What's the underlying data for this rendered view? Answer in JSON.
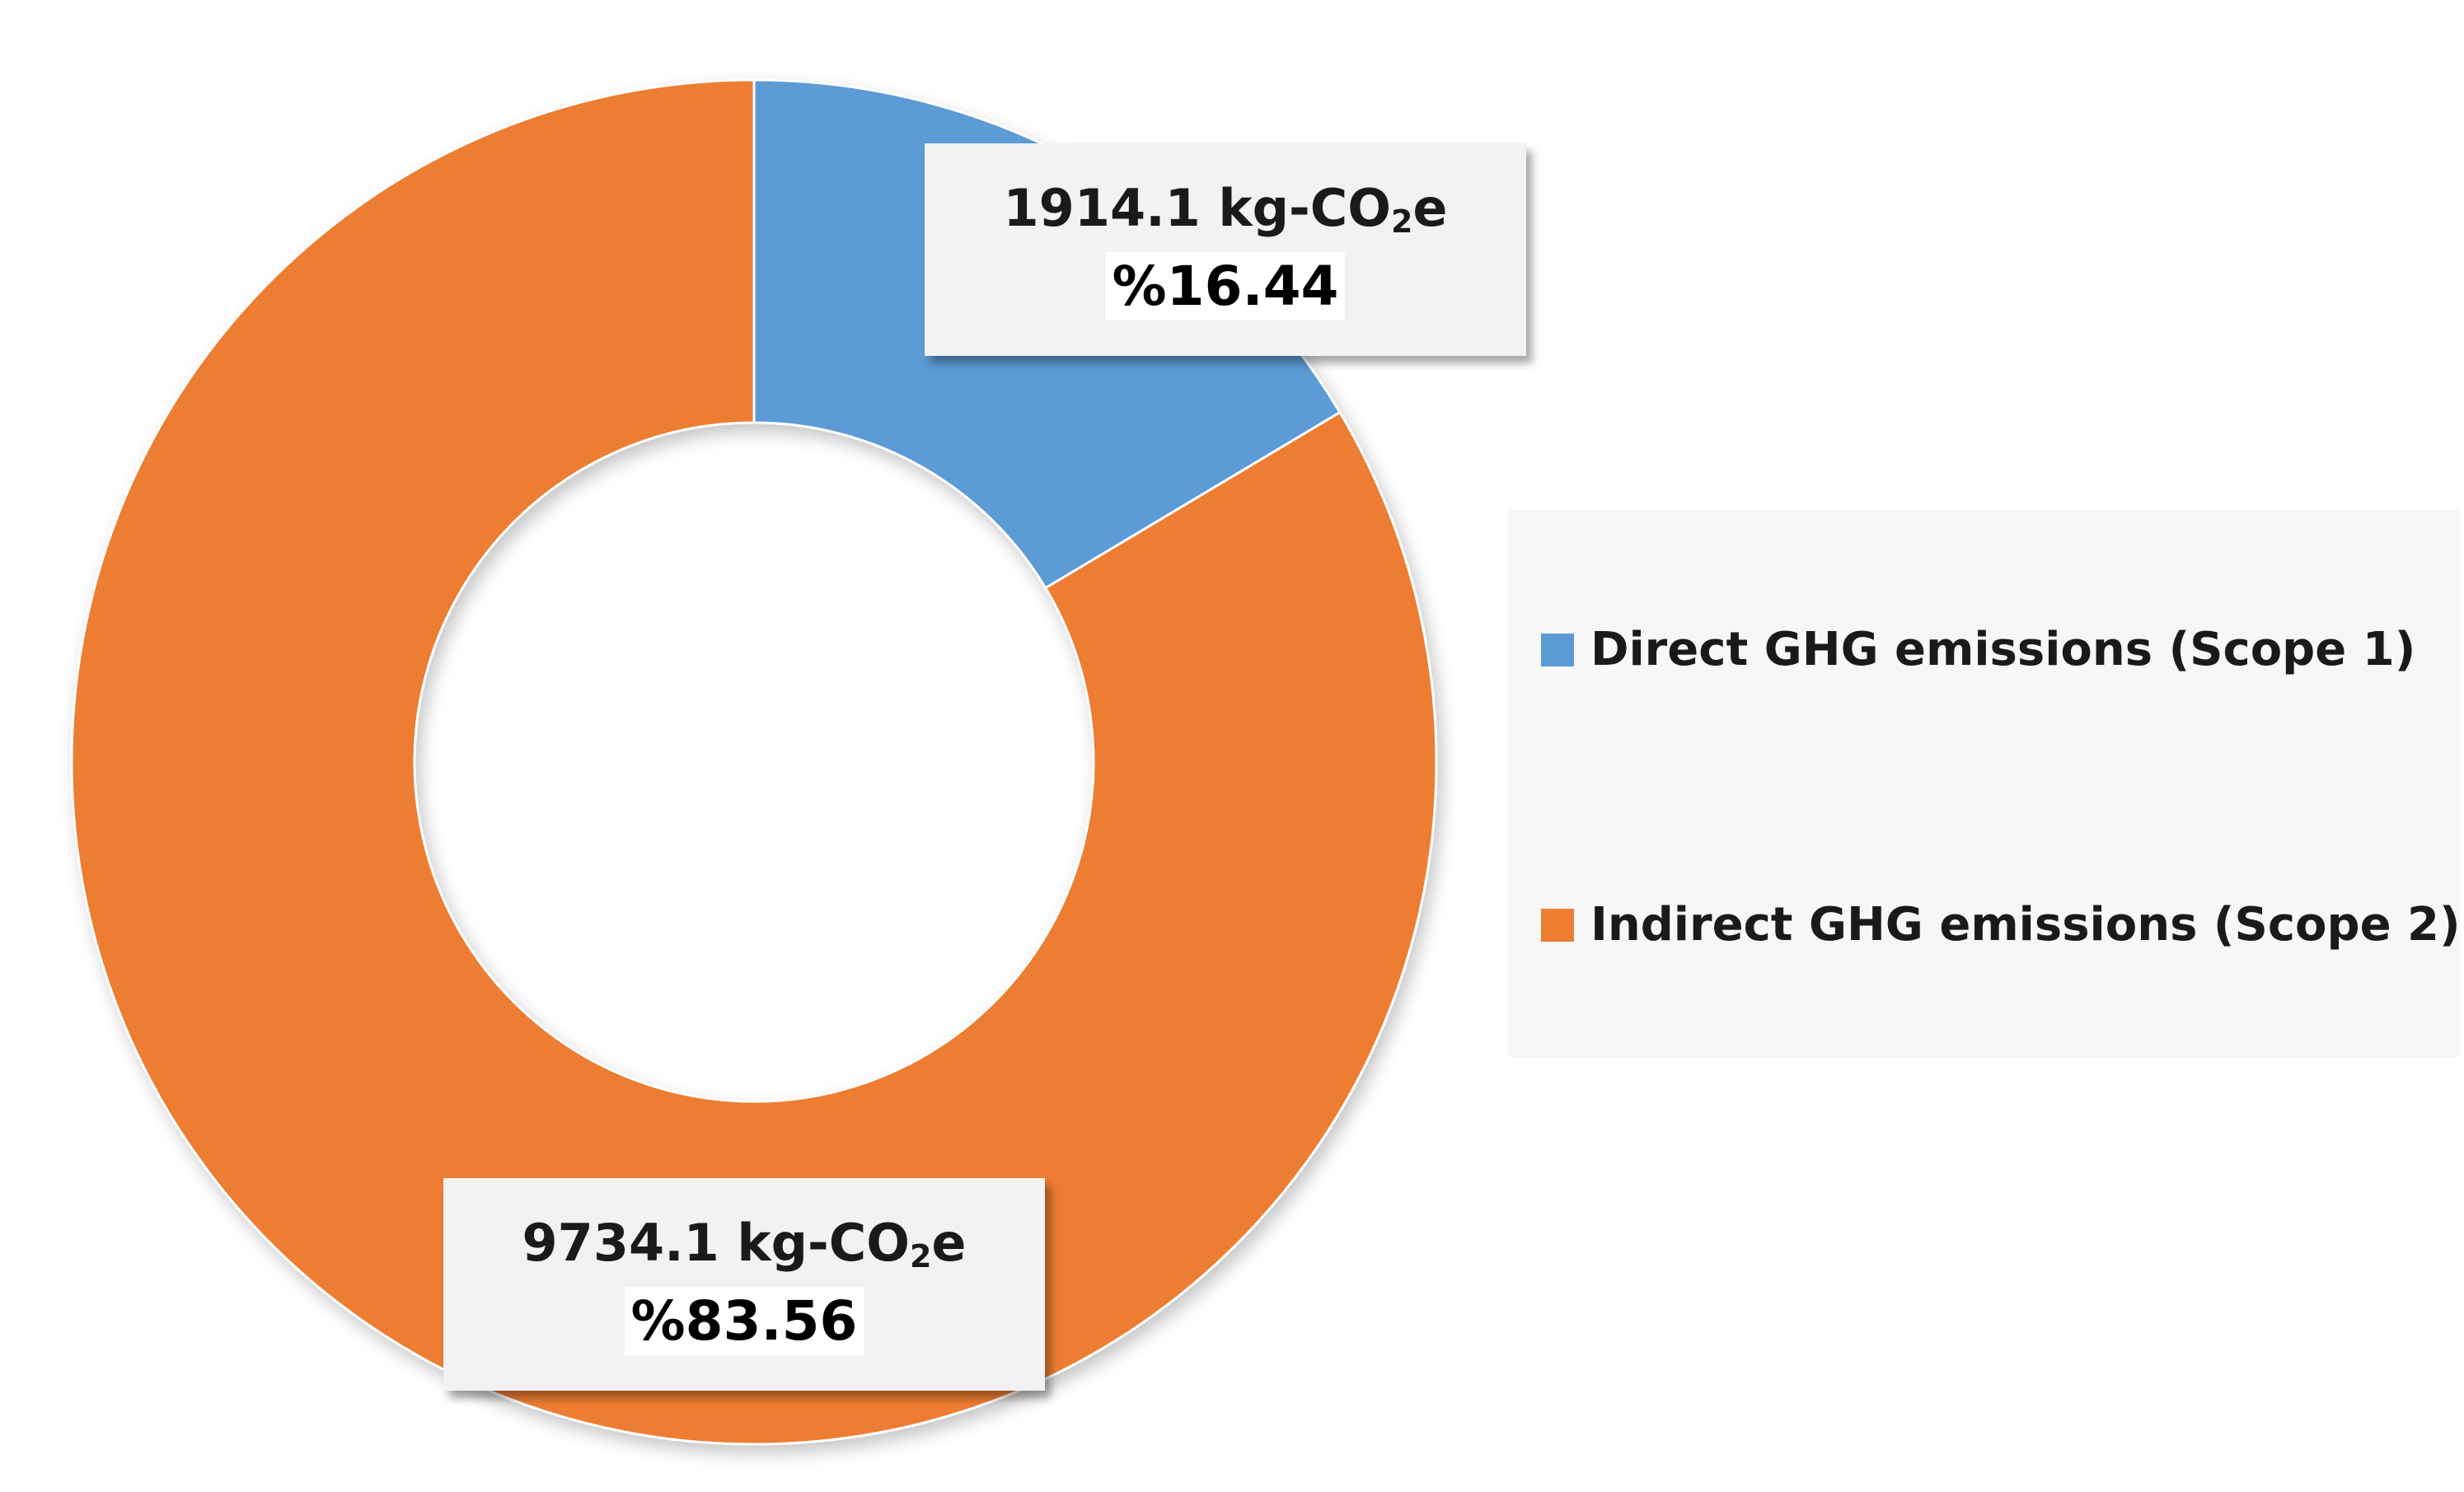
{
  "chart_data": {
    "type": "pie",
    "variant": "donut",
    "title": "",
    "series": [
      {
        "name": "Direct GHG emissions (Scope 1)",
        "value": 1914.1,
        "value_text": "1914.1 kg-CO",
        "sub": "2",
        "unit_suffix": "e",
        "percent_text": "%16.44",
        "color": "#5b9bd5"
      },
      {
        "name": "Indirect GHG emissions (Scope 2)",
        "value": 9734.1,
        "value_text": "9734.1 kg-CO",
        "sub": "2",
        "unit_suffix": "e",
        "percent_text": "%83.56",
        "color": "#ed7d31"
      }
    ],
    "legend_position": "right"
  }
}
